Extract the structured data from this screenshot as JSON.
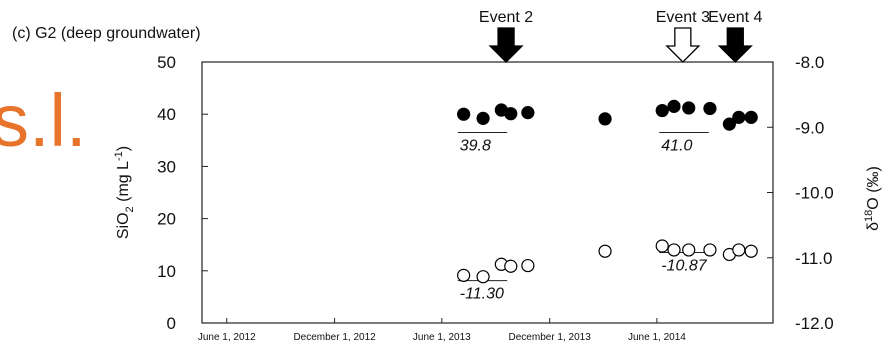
{
  "fragment_text": "s.l.",
  "chart_data": {
    "type": "scatter",
    "title": "(c) G2 (deep groundwater)",
    "ylabel_left": "SiO2 (mg L-1)",
    "ylabel_right": "δ18O (‰)",
    "ylim_left": [
      0,
      50
    ],
    "ylim_right": [
      -12.0,
      -8.0
    ],
    "xlim": [
      "2012-04-20",
      "2014-12-15"
    ],
    "grid": false,
    "x_ticks": [
      "June 1, 2012",
      "December 1, 2012",
      "June 1, 2013",
      "December 1, 2013",
      "June 1, 2014"
    ],
    "y_ticks_left": [
      "0",
      "10",
      "20",
      "30",
      "40",
      "50"
    ],
    "y_ticks_right": [
      "-8.0",
      "-9.0",
      "-10.0",
      "-11.0",
      "-12.0"
    ],
    "series": [
      {
        "marker": "filled-circle",
        "color": "#000000",
        "axis": "left",
        "points": [
          {
            "x": "2013-07-08",
            "y": 40.0
          },
          {
            "x": "2013-08-10",
            "y": 39.2
          },
          {
            "x": "2013-09-10",
            "y": 40.8
          },
          {
            "x": "2013-09-26",
            "y": 40.1
          },
          {
            "x": "2013-10-25",
            "y": 40.3
          },
          {
            "x": "2014-03-05",
            "y": 39.1
          },
          {
            "x": "2014-06-10",
            "y": 40.7
          },
          {
            "x": "2014-06-30",
            "y": 41.5
          },
          {
            "x": "2014-07-25",
            "y": 41.2
          },
          {
            "x": "2014-08-30",
            "y": 41.1
          },
          {
            "x": "2014-10-02",
            "y": 38.1
          },
          {
            "x": "2014-10-18",
            "y": 39.4
          },
          {
            "x": "2014-11-08",
            "y": 39.4
          }
        ]
      },
      {
        "marker": "open-circle",
        "color": "#000000",
        "axis": "right",
        "points": [
          {
            "x": "2013-07-08",
            "y": -11.27
          },
          {
            "x": "2013-08-10",
            "y": -11.29
          },
          {
            "x": "2013-09-10",
            "y": -11.1
          },
          {
            "x": "2013-09-26",
            "y": -11.13
          },
          {
            "x": "2013-10-25",
            "y": -11.12
          },
          {
            "x": "2014-03-05",
            "y": -10.9
          },
          {
            "x": "2014-06-10",
            "y": -10.82
          },
          {
            "x": "2014-06-30",
            "y": -10.88
          },
          {
            "x": "2014-07-25",
            "y": -10.88
          },
          {
            "x": "2014-08-30",
            "y": -10.88
          },
          {
            "x": "2014-10-02",
            "y": -10.95
          },
          {
            "x": "2014-10-18",
            "y": -10.88
          },
          {
            "x": "2014-11-08",
            "y": -10.9
          }
        ]
      }
    ],
    "mean_lines": [
      {
        "label": "39.8",
        "axis": "left",
        "y": 36.5,
        "x_from": "2013-06-28",
        "x_to": "2013-09-20"
      },
      {
        "label": "41.0",
        "axis": "left",
        "y": 36.5,
        "x_from": "2014-06-05",
        "x_to": "2014-08-28"
      },
      {
        "label": "-11.30",
        "axis": "right",
        "y": -11.35,
        "x_from": "2013-06-28",
        "x_to": "2013-09-20"
      },
      {
        "label": "-10.87",
        "axis": "right",
        "y": -10.92,
        "x_from": "2014-06-05",
        "x_to": "2014-08-28"
      }
    ],
    "events": [
      {
        "label": "Event 2",
        "x": "2013-09-18",
        "style": "filled"
      },
      {
        "label": "Event 3",
        "x": "2014-07-15",
        "style": "open"
      },
      {
        "label": "Event 4",
        "x": "2014-10-12",
        "style": "filled"
      }
    ]
  }
}
